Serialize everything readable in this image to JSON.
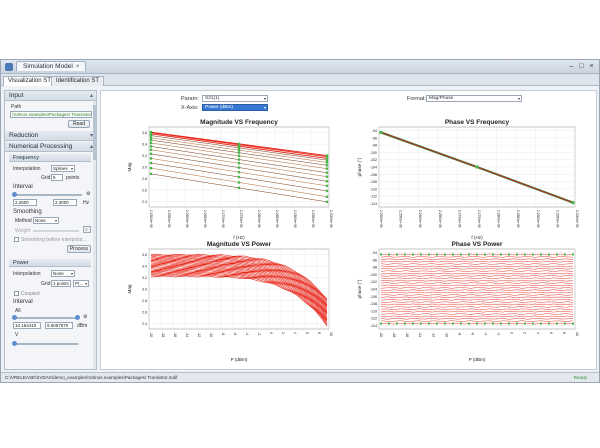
{
  "window": {
    "title": "Simulation Model",
    "close_glyph": "×",
    "controls": {
      "minimize": "–",
      "maximize": "□",
      "close": "×"
    }
  },
  "tabs": [
    "Visualization ST",
    "Identification ST"
  ],
  "left_panel": {
    "input": {
      "header": "Input",
      "path_label": "Path",
      "path_value": "\\Vdmos examples\\Packages\\ Transistor",
      "read_button": "Read"
    },
    "reduction": {
      "header": "Reduction"
    },
    "numerical": {
      "header": "Numerical Processing",
      "frequency": {
        "header": "Frequency",
        "interpolation_label": "Interpolation",
        "interpolation_value": "Splines",
        "grid_label": "Grid",
        "grid_value": "5",
        "grid_unit": "points",
        "interval_label": "Interval",
        "interval_min": "2.2500",
        "interval_max": "2.3000",
        "interval_unit": "Hz",
        "smoothing_label": "Smoothing",
        "method_label": "Method",
        "method_value": "None",
        "weight_label": "Weight",
        "weight_value": "0",
        "smoothing_check_label": "Smoothing before interpolat...",
        "process_button": "Process"
      },
      "power": {
        "header": "Power",
        "interpolation_label": "Interpolation",
        "interpolation_value": "None",
        "grid_label": "Grid",
        "grid_value": "1",
        "grid_unit": "points",
        "grid_unit2": "P(...",
        "coupled_label": "Coupled",
        "interval_label": "Interval",
        "all_label": "All",
        "interval_min": "10.164410",
        "interval_max": "9.6057970",
        "interval_unit": "dBm",
        "v_label": "V"
      }
    }
  },
  "main": {
    "param_label": "Param:",
    "param_value": "S21(1)",
    "xaxis_label": "X-Axis:",
    "xaxis_value": "Power (dBm)",
    "format_label": "Format:",
    "format_value": "Mag/Phase"
  },
  "status": {
    "path": "C:\\VRELEASE\\SVDAS\\demo_examples\\Vdmos examples\\Packages\\ Transistor.mdif",
    "ready": "Ready"
  },
  "colors": {
    "curve": "#e8261a",
    "curve_dark": "#7a3a1a",
    "marker": "#49b649",
    "accent": "#3878d2"
  },
  "chart_data": [
    {
      "type": "line",
      "title": "Magnitude VS Frequency",
      "xlabel": "f (Hz)",
      "ylabel": "Mag",
      "x_ticks": [
        "2.2500e+09",
        "2.2550e+09",
        "2.2600e+09",
        "2.2650e+09",
        "2.2700e+09",
        "2.2750e+09",
        "2.2800e+09",
        "2.2850e+09",
        "2.2900e+09",
        "2.2950e+09",
        "2.3000e+09"
      ],
      "y_ticks": [
        "2.4",
        "2.6",
        "2.8",
        "3.0",
        "3.2",
        "3.4",
        "3.6"
      ],
      "ylim": [
        2.3,
        3.7
      ],
      "x": [
        2.25,
        2.3
      ],
      "series": [
        {
          "values": [
            3.61,
            3.2
          ]
        },
        {
          "values": [
            3.6,
            3.18
          ]
        },
        {
          "values": [
            3.58,
            3.15
          ]
        },
        {
          "values": [
            3.55,
            3.12
          ]
        },
        {
          "values": [
            3.51,
            3.08
          ]
        },
        {
          "values": [
            3.47,
            3.03
          ]
        },
        {
          "values": [
            3.42,
            2.97
          ]
        },
        {
          "values": [
            3.36,
            2.9
          ]
        },
        {
          "values": [
            3.3,
            2.83
          ]
        },
        {
          "values": [
            3.23,
            2.75
          ]
        },
        {
          "values": [
            3.15,
            2.67
          ]
        },
        {
          "values": [
            3.07,
            2.58
          ]
        },
        {
          "values": [
            2.98,
            2.48
          ]
        },
        {
          "values": [
            2.88,
            2.39
          ]
        }
      ]
    },
    {
      "type": "line",
      "title": "Phase VS Frequency",
      "xlabel": "f (Hz)",
      "ylabel": "phase (°)",
      "x_ticks": [
        "2.2500e+09",
        "2.2550e+09",
        "2.2600e+09",
        "2.2650e+09",
        "2.2700e+09",
        "2.2750e+09",
        "2.2800e+09",
        "2.2850e+09",
        "2.2900e+09",
        "2.2950e+09",
        "2.3000e+09"
      ],
      "y_ticks": [
        "-114",
        "-112",
        "-110",
        "-108",
        "-106",
        "-104",
        "-102",
        "-100",
        "-98",
        "-96",
        "-94"
      ],
      "ylim": [
        -115,
        -93
      ],
      "x": [
        2.25,
        2.275,
        2.3
      ],
      "series": [
        {
          "values": [
            -94.5,
            -104.0,
            -113.8
          ]
        }
      ]
    },
    {
      "type": "line",
      "title": "Magnitude VS Power",
      "xlabel": "P (dBm)",
      "ylabel": "Mag",
      "x_ticks": [
        "-20",
        "-18",
        "-16",
        "-14",
        "-12",
        "-10",
        "-8",
        "-6",
        "-4",
        "-2",
        "0",
        "2",
        "4",
        "6",
        "8",
        "10"
      ],
      "y_ticks": [
        "2.4",
        "2.6",
        "2.8",
        "3.0",
        "3.2",
        "3.4",
        "3.6"
      ],
      "ylim": [
        2.3,
        3.7
      ],
      "xlim": [
        -20,
        10
      ],
      "series_top": [
        3.6,
        2.82
      ],
      "series_bottom": [
        3.22,
        2.36
      ],
      "series_count": 24
    },
    {
      "type": "line",
      "title": "Phase VS Power",
      "xlabel": "P (dBm)",
      "ylabel": "phase (°)",
      "x_ticks": [
        "-20",
        "-18",
        "-16",
        "-14",
        "-12",
        "-10",
        "-8",
        "-6",
        "-4",
        "-2",
        "0",
        "2",
        "4",
        "6",
        "8",
        "10"
      ],
      "y_ticks": [
        "-114",
        "-112",
        "-110",
        "-108",
        "-106",
        "-104",
        "-102",
        "-100",
        "-98",
        "-96",
        "-94"
      ],
      "ylim": [
        -115,
        -93
      ],
      "xlim": [
        -20,
        10
      ],
      "phase_range": [
        -113.5,
        -94.5
      ],
      "series_count": 30
    }
  ]
}
